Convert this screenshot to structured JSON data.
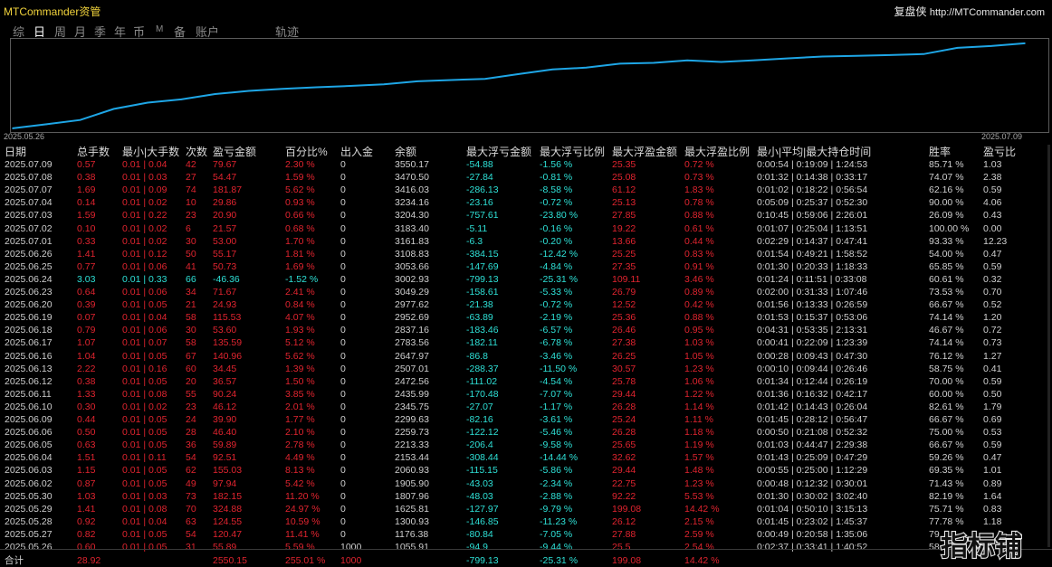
{
  "app": {
    "title": "MTCommander资管",
    "brand_name": "复盘侠",
    "brand_url": "http://MTCommander.com"
  },
  "tabs": [
    {
      "label": "综",
      "active": false
    },
    {
      "label": "日",
      "active": true
    },
    {
      "label": "周",
      "active": false
    },
    {
      "label": "月",
      "active": false
    },
    {
      "label": "季",
      "active": false
    },
    {
      "label": "年",
      "active": false
    },
    {
      "label": "币",
      "active": false
    },
    {
      "label": "M",
      "active": false
    },
    {
      "label": "备",
      "active": false
    },
    {
      "label": "账户",
      "active": false
    },
    {
      "label": "轨迹",
      "active": false
    }
  ],
  "chart_data": {
    "type": "line",
    "x_start_label": "2025.05.26",
    "x_end_label": "2025.07.09",
    "x": [
      "2025.05.26",
      "2025.05.27",
      "2025.05.28",
      "2025.05.29",
      "2025.05.30",
      "2025.06.02",
      "2025.06.03",
      "2025.06.04",
      "2025.06.05",
      "2025.06.06",
      "2025.06.09",
      "2025.06.10",
      "2025.06.11",
      "2025.06.12",
      "2025.06.13",
      "2025.06.16",
      "2025.06.17",
      "2025.06.18",
      "2025.06.19",
      "2025.06.20",
      "2025.06.23",
      "2025.06.24",
      "2025.06.25",
      "2025.06.26",
      "2025.07.01",
      "2025.07.02",
      "2025.07.03",
      "2025.07.04",
      "2025.07.07",
      "2025.07.08",
      "2025.07.09"
    ],
    "series": [
      {
        "values": [
          1055.91,
          1176.38,
          1300.93,
          1625.81,
          1807.96,
          1905.9,
          2060.93,
          2153.44,
          2213.33,
          2259.73,
          2299.63,
          2345.75,
          2435.99,
          2472.56,
          2507.01,
          2647.97,
          2783.56,
          2837.16,
          2952.69,
          2977.62,
          3049.29,
          3002.93,
          3053.66,
          3108.83,
          3161.83,
          3183.4,
          3204.3,
          3234.16,
          3416.03,
          3470.5,
          3550.17
        ]
      }
    ],
    "ylim": [
      1000,
      3600
    ],
    "line_color": "#1ea6e6",
    "grid": false
  },
  "table": {
    "headers": [
      "日期",
      "总手数",
      "最小|大手数",
      "次数",
      "盈亏金额",
      "百分比%",
      "出入金",
      "余额",
      "最大浮亏金额",
      "最大浮亏比例",
      "最大浮盈金额",
      "最大浮盈比例",
      "最小|平均|最大持仓时间",
      "胜率",
      "盈亏比"
    ],
    "rows": [
      {
        "date": "2025.07.09",
        "lots": "0.57",
        "minmax": "0.01 | 0.04",
        "count": "42",
        "pnl": "79.67",
        "pct": "2.30 %",
        "flow": "0",
        "balance": "3550.17",
        "max_float_loss": "-54.88",
        "max_float_loss_pct": "-1.56 %",
        "max_float_profit": "25.35",
        "max_float_profit_pct": "0.72 %",
        "hold": "0:00:54 | 0:19:09 | 1:24:53",
        "win": "85.71 %",
        "ratio": "1.03",
        "sign": "pos"
      },
      {
        "date": "2025.07.08",
        "lots": "0.38",
        "minmax": "0.01 | 0.03",
        "count": "27",
        "pnl": "54.47",
        "pct": "1.59 %",
        "flow": "0",
        "balance": "3470.50",
        "max_float_loss": "-27.84",
        "max_float_loss_pct": "-0.81 %",
        "max_float_profit": "25.08",
        "max_float_profit_pct": "0.73 %",
        "hold": "0:01:32 | 0:14:38 | 0:33:17",
        "win": "74.07 %",
        "ratio": "2.38",
        "sign": "pos"
      },
      {
        "date": "2025.07.07",
        "lots": "1.69",
        "minmax": "0.01 | 0.09",
        "count": "74",
        "pnl": "181.87",
        "pct": "5.62 %",
        "flow": "0",
        "balance": "3416.03",
        "max_float_loss": "-286.13",
        "max_float_loss_pct": "-8.58 %",
        "max_float_profit": "61.12",
        "max_float_profit_pct": "1.83 %",
        "hold": "0:01:02 | 0:18:22 | 0:56:54",
        "win": "62.16 %",
        "ratio": "0.59",
        "sign": "pos"
      },
      {
        "date": "2025.07.04",
        "lots": "0.14",
        "minmax": "0.01 | 0.02",
        "count": "10",
        "pnl": "29.86",
        "pct": "0.93 %",
        "flow": "0",
        "balance": "3234.16",
        "max_float_loss": "-23.16",
        "max_float_loss_pct": "-0.72 %",
        "max_float_profit": "25.13",
        "max_float_profit_pct": "0.78 %",
        "hold": "0:05:09 | 0:25:37 | 0:52:30",
        "win": "90.00 %",
        "ratio": "4.06",
        "sign": "pos"
      },
      {
        "date": "2025.07.03",
        "lots": "1.59",
        "minmax": "0.01 | 0.22",
        "count": "23",
        "pnl": "20.90",
        "pct": "0.66 %",
        "flow": "0",
        "balance": "3204.30",
        "max_float_loss": "-757.61",
        "max_float_loss_pct": "-23.80 %",
        "max_float_profit": "27.85",
        "max_float_profit_pct": "0.88 %",
        "hold": "0:10:45 | 0:59:06 | 2:26:01",
        "win": "26.09 %",
        "ratio": "0.43",
        "sign": "pos"
      },
      {
        "date": "2025.07.02",
        "lots": "0.10",
        "minmax": "0.01 | 0.02",
        "count": "6",
        "pnl": "21.57",
        "pct": "0.68 %",
        "flow": "0",
        "balance": "3183.40",
        "max_float_loss": "-5.11",
        "max_float_loss_pct": "-0.16 %",
        "max_float_profit": "19.22",
        "max_float_profit_pct": "0.61 %",
        "hold": "0:01:07 | 0:25:04 | 1:13:51",
        "win": "100.00 %",
        "ratio": "0.00",
        "sign": "pos"
      },
      {
        "date": "2025.07.01",
        "lots": "0.33",
        "minmax": "0.01 | 0.02",
        "count": "30",
        "pnl": "53.00",
        "pct": "1.70 %",
        "flow": "0",
        "balance": "3161.83",
        "max_float_loss": "-6.3",
        "max_float_loss_pct": "-0.20 %",
        "max_float_profit": "13.66",
        "max_float_profit_pct": "0.44 %",
        "hold": "0:02:29 | 0:14:37 | 0:47:41",
        "win": "93.33 %",
        "ratio": "12.23",
        "sign": "pos"
      },
      {
        "date": "2025.06.26",
        "lots": "1.41",
        "minmax": "0.01 | 0.12",
        "count": "50",
        "pnl": "55.17",
        "pct": "1.81 %",
        "flow": "0",
        "balance": "3108.83",
        "max_float_loss": "-384.15",
        "max_float_loss_pct": "-12.42 %",
        "max_float_profit": "25.25",
        "max_float_profit_pct": "0.83 %",
        "hold": "0:01:54 | 0:49:21 | 1:58:52",
        "win": "54.00 %",
        "ratio": "0.47",
        "sign": "pos"
      },
      {
        "date": "2025.06.25",
        "lots": "0.77",
        "minmax": "0.01 | 0.06",
        "count": "41",
        "pnl": "50.73",
        "pct": "1.69 %",
        "flow": "0",
        "balance": "3053.66",
        "max_float_loss": "-147.69",
        "max_float_loss_pct": "-4.84 %",
        "max_float_profit": "27.35",
        "max_float_profit_pct": "0.91 %",
        "hold": "0:01:30 | 0:20:33 | 1:18:33",
        "win": "65.85 %",
        "ratio": "0.59",
        "sign": "pos"
      },
      {
        "date": "2025.06.24",
        "lots": "3.03",
        "minmax": "0.01 | 0.33",
        "count": "66",
        "pnl": "-46.36",
        "pct": "-1.52 %",
        "flow": "0",
        "balance": "3002.93",
        "max_float_loss": "-799.13",
        "max_float_loss_pct": "-25.31 %",
        "max_float_profit": "109.11",
        "max_float_profit_pct": "3.46 %",
        "hold": "0:01:24 | 0:11:51 | 0:33:08",
        "win": "60.61 %",
        "ratio": "0.32",
        "sign": "neg"
      },
      {
        "date": "2025.06.23",
        "lots": "0.64",
        "minmax": "0.01 | 0.06",
        "count": "34",
        "pnl": "71.67",
        "pct": "2.41 %",
        "flow": "0",
        "balance": "3049.29",
        "max_float_loss": "-158.61",
        "max_float_loss_pct": "-5.33 %",
        "max_float_profit": "26.79",
        "max_float_profit_pct": "0.89 %",
        "hold": "0:02:00 | 0:31:33 | 1:07:46",
        "win": "73.53 %",
        "ratio": "0.70",
        "sign": "pos"
      },
      {
        "date": "2025.06.20",
        "lots": "0.39",
        "minmax": "0.01 | 0.05",
        "count": "21",
        "pnl": "24.93",
        "pct": "0.84 %",
        "flow": "0",
        "balance": "2977.62",
        "max_float_loss": "-21.38",
        "max_float_loss_pct": "-0.72 %",
        "max_float_profit": "12.52",
        "max_float_profit_pct": "0.42 %",
        "hold": "0:01:56 | 0:13:33 | 0:26:59",
        "win": "66.67 %",
        "ratio": "0.52",
        "sign": "pos"
      },
      {
        "date": "2025.06.19",
        "lots": "0.07",
        "minmax": "0.01 | 0.04",
        "count": "58",
        "pnl": "115.53",
        "pct": "4.07 %",
        "flow": "0",
        "balance": "2952.69",
        "max_float_loss": "-63.89",
        "max_float_loss_pct": "-2.19 %",
        "max_float_profit": "25.36",
        "max_float_profit_pct": "0.88 %",
        "hold": "0:01:53 | 0:15:37 | 0:53:06",
        "win": "74.14 %",
        "ratio": "1.20",
        "sign": "pos"
      },
      {
        "date": "2025.06.18",
        "lots": "0.79",
        "minmax": "0.01 | 0.06",
        "count": "30",
        "pnl": "53.60",
        "pct": "1.93 %",
        "flow": "0",
        "balance": "2837.16",
        "max_float_loss": "-183.46",
        "max_float_loss_pct": "-6.57 %",
        "max_float_profit": "26.46",
        "max_float_profit_pct": "0.95 %",
        "hold": "0:04:31 | 0:53:35 | 2:13:31",
        "win": "46.67 %",
        "ratio": "0.72",
        "sign": "pos"
      },
      {
        "date": "2025.06.17",
        "lots": "1.07",
        "minmax": "0.01 | 0.07",
        "count": "58",
        "pnl": "135.59",
        "pct": "5.12 %",
        "flow": "0",
        "balance": "2783.56",
        "max_float_loss": "-182.11",
        "max_float_loss_pct": "-6.78 %",
        "max_float_profit": "27.38",
        "max_float_profit_pct": "1.03 %",
        "hold": "0:00:41 | 0:22:09 | 1:23:39",
        "win": "74.14 %",
        "ratio": "0.73",
        "sign": "pos"
      },
      {
        "date": "2025.06.16",
        "lots": "1.04",
        "minmax": "0.01 | 0.05",
        "count": "67",
        "pnl": "140.96",
        "pct": "5.62 %",
        "flow": "0",
        "balance": "2647.97",
        "max_float_loss": "-86.8",
        "max_float_loss_pct": "-3.46 %",
        "max_float_profit": "26.25",
        "max_float_profit_pct": "1.05 %",
        "hold": "0:00:28 | 0:09:43 | 0:47:30",
        "win": "76.12 %",
        "ratio": "1.27",
        "sign": "pos"
      },
      {
        "date": "2025.06.13",
        "lots": "2.22",
        "minmax": "0.01 | 0.16",
        "count": "60",
        "pnl": "34.45",
        "pct": "1.39 %",
        "flow": "0",
        "balance": "2507.01",
        "max_float_loss": "-288.37",
        "max_float_loss_pct": "-11.50 %",
        "max_float_profit": "30.57",
        "max_float_profit_pct": "1.23 %",
        "hold": "0:00:10 | 0:09:44 | 0:26:46",
        "win": "58.75 %",
        "ratio": "0.41",
        "sign": "pos"
      },
      {
        "date": "2025.06.12",
        "lots": "0.38",
        "minmax": "0.01 | 0.05",
        "count": "20",
        "pnl": "36.57",
        "pct": "1.50 %",
        "flow": "0",
        "balance": "2472.56",
        "max_float_loss": "-111.02",
        "max_float_loss_pct": "-4.54 %",
        "max_float_profit": "25.78",
        "max_float_profit_pct": "1.06 %",
        "hold": "0:01:34 | 0:12:44 | 0:26:19",
        "win": "70.00 %",
        "ratio": "0.59",
        "sign": "pos"
      },
      {
        "date": "2025.06.11",
        "lots": "1.33",
        "minmax": "0.01 | 0.08",
        "count": "55",
        "pnl": "90.24",
        "pct": "3.85 %",
        "flow": "0",
        "balance": "2435.99",
        "max_float_loss": "-170.48",
        "max_float_loss_pct": "-7.07 %",
        "max_float_profit": "29.44",
        "max_float_profit_pct": "1.22 %",
        "hold": "0:01:36 | 0:16:32 | 0:42:17",
        "win": "60.00 %",
        "ratio": "0.50",
        "sign": "pos"
      },
      {
        "date": "2025.06.10",
        "lots": "0.30",
        "minmax": "0.01 | 0.02",
        "count": "23",
        "pnl": "46.12",
        "pct": "2.01 %",
        "flow": "0",
        "balance": "2345.75",
        "max_float_loss": "-27.07",
        "max_float_loss_pct": "-1.17 %",
        "max_float_profit": "26.28",
        "max_float_profit_pct": "1.14 %",
        "hold": "0:01:42 | 0:14:43 | 0:26:04",
        "win": "82.61 %",
        "ratio": "1.79",
        "sign": "pos"
      },
      {
        "date": "2025.06.09",
        "lots": "0.44",
        "minmax": "0.01 | 0.05",
        "count": "24",
        "pnl": "39.90",
        "pct": "1.77 %",
        "flow": "0",
        "balance": "2299.63",
        "max_float_loss": "-82.16",
        "max_float_loss_pct": "-3.61 %",
        "max_float_profit": "25.24",
        "max_float_profit_pct": "1.11 %",
        "hold": "0:01:45 | 0:28:12 | 0:56:47",
        "win": "66.67 %",
        "ratio": "0.69",
        "sign": "pos"
      },
      {
        "date": "2025.06.06",
        "lots": "0.50",
        "minmax": "0.01 | 0.05",
        "count": "28",
        "pnl": "46.40",
        "pct": "2.10 %",
        "flow": "0",
        "balance": "2259.73",
        "max_float_loss": "-122.12",
        "max_float_loss_pct": "-5.46 %",
        "max_float_profit": "26.28",
        "max_float_profit_pct": "1.18 %",
        "hold": "0:00:50 | 0:21:08 | 0:52:32",
        "win": "75.00 %",
        "ratio": "0.53",
        "sign": "pos"
      },
      {
        "date": "2025.06.05",
        "lots": "0.63",
        "minmax": "0.01 | 0.05",
        "count": "36",
        "pnl": "59.89",
        "pct": "2.78 %",
        "flow": "0",
        "balance": "2213.33",
        "max_float_loss": "-206.4",
        "max_float_loss_pct": "-9.58 %",
        "max_float_profit": "25.65",
        "max_float_profit_pct": "1.19 %",
        "hold": "0:01:03 | 0:44:47 | 2:29:38",
        "win": "66.67 %",
        "ratio": "0.59",
        "sign": "pos"
      },
      {
        "date": "2025.06.04",
        "lots": "1.51",
        "minmax": "0.01 | 0.11",
        "count": "54",
        "pnl": "92.51",
        "pct": "4.49 %",
        "flow": "0",
        "balance": "2153.44",
        "max_float_loss": "-308.44",
        "max_float_loss_pct": "-14.44 %",
        "max_float_profit": "32.62",
        "max_float_profit_pct": "1.57 %",
        "hold": "0:01:43 | 0:25:09 | 0:47:29",
        "win": "59.26 %",
        "ratio": "0.47",
        "sign": "pos"
      },
      {
        "date": "2025.06.03",
        "lots": "1.15",
        "minmax": "0.01 | 0.05",
        "count": "62",
        "pnl": "155.03",
        "pct": "8.13 %",
        "flow": "0",
        "balance": "2060.93",
        "max_float_loss": "-115.15",
        "max_float_loss_pct": "-5.86 %",
        "max_float_profit": "29.44",
        "max_float_profit_pct": "1.48 %",
        "hold": "0:00:55 | 0:25:00 | 1:12:29",
        "win": "69.35 %",
        "ratio": "1.01",
        "sign": "pos"
      },
      {
        "date": "2025.06.02",
        "lots": "0.87",
        "minmax": "0.01 | 0.05",
        "count": "49",
        "pnl": "97.94",
        "pct": "5.42 %",
        "flow": "0",
        "balance": "1905.90",
        "max_float_loss": "-43.03",
        "max_float_loss_pct": "-2.34 %",
        "max_float_profit": "22.75",
        "max_float_profit_pct": "1.23 %",
        "hold": "0:00:48 | 0:12:32 | 0:30:01",
        "win": "71.43 %",
        "ratio": "0.89",
        "sign": "pos"
      },
      {
        "date": "2025.05.30",
        "lots": "1.03",
        "minmax": "0.01 | 0.03",
        "count": "73",
        "pnl": "182.15",
        "pct": "11.20 %",
        "flow": "0",
        "balance": "1807.96",
        "max_float_loss": "-48.03",
        "max_float_loss_pct": "-2.88 %",
        "max_float_profit": "92.22",
        "max_float_profit_pct": "5.53 %",
        "hold": "0:01:30 | 0:30:02 | 3:02:40",
        "win": "82.19 %",
        "ratio": "1.64",
        "sign": "pos"
      },
      {
        "date": "2025.05.29",
        "lots": "1.41",
        "minmax": "0.01 | 0.08",
        "count": "70",
        "pnl": "324.88",
        "pct": "24.97 %",
        "flow": "0",
        "balance": "1625.81",
        "max_float_loss": "-127.97",
        "max_float_loss_pct": "-9.79 %",
        "max_float_profit": "199.08",
        "max_float_profit_pct": "14.42 %",
        "hold": "0:01:04 | 0:50:10 | 3:15:13",
        "win": "75.71 %",
        "ratio": "0.83",
        "sign": "pos"
      },
      {
        "date": "2025.05.28",
        "lots": "0.92",
        "minmax": "0.01 | 0.04",
        "count": "63",
        "pnl": "124.55",
        "pct": "10.59 %",
        "flow": "0",
        "balance": "1300.93",
        "max_float_loss": "-146.85",
        "max_float_loss_pct": "-11.23 %",
        "max_float_profit": "26.12",
        "max_float_profit_pct": "2.15 %",
        "hold": "0:01:45 | 0:23:02 | 1:45:37",
        "win": "77.78 %",
        "ratio": "1.18",
        "sign": "pos"
      },
      {
        "date": "2025.05.27",
        "lots": "0.82",
        "minmax": "0.01 | 0.05",
        "count": "54",
        "pnl": "120.47",
        "pct": "11.41 %",
        "flow": "0",
        "balance": "1176.38",
        "max_float_loss": "-80.84",
        "max_float_loss_pct": "-7.05 %",
        "max_float_profit": "27.88",
        "max_float_profit_pct": "2.59 %",
        "hold": "0:00:49 | 0:20:58 | 1:35:06",
        "win": "79.",
        "ratio": "",
        "sign": "pos"
      },
      {
        "date": "2025.05.26",
        "lots": "0.60",
        "minmax": "0.01 | 0.05",
        "count": "31",
        "pnl": "55.89",
        "pct": "5.59 %",
        "flow": "1000",
        "balance": "1055.91",
        "max_float_loss": "-94.9",
        "max_float_loss_pct": "-9.44 %",
        "max_float_profit": "25.5",
        "max_float_profit_pct": "2.54 %",
        "hold": "0:02:37 | 0:33:41 | 1:40:52",
        "win": "58.",
        "ratio": "",
        "sign": "pos"
      }
    ],
    "total": {
      "label": "合计",
      "lots": "28.92",
      "pnl": "2550.15",
      "pct": "255.01 %",
      "flow": "1000",
      "max_float_loss": "-799.13",
      "max_float_loss_pct": "-25.31 %",
      "max_float_profit": "199.08",
      "max_float_profit_pct": "14.42 %"
    }
  },
  "watermark": {
    "text": "指标铺"
  },
  "colors": {
    "title": "#f0d23c",
    "positive": "#e0242f",
    "negative": "#2ee0d6",
    "line": "#1ea6e6"
  }
}
